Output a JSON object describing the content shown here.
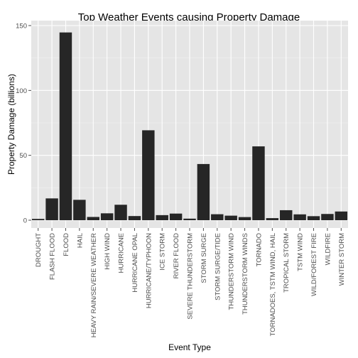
{
  "colors": {
    "panel": "#e5e5e5",
    "grid_major": "#ffffff",
    "grid_minor": "#f2f2f2",
    "bar": "#262626",
    "tick": "#4d4d4d"
  },
  "chart_data": {
    "type": "bar",
    "title": "Top Weather Events causing Property Damage",
    "xlabel": "Event Type",
    "ylabel": "Property Damage (billions)",
    "ylim": [
      0,
      150
    ],
    "yticks": [
      0,
      50,
      100,
      150
    ],
    "grid": true,
    "categories": [
      "DROUGHT",
      "FLASH FLOOD",
      "FLOOD",
      "HAIL",
      "HEAVY RAIN/SEVERE WEATHER",
      "HIGH WIND",
      "HURRICANE",
      "HURRICANE OPAL",
      "HURRICANE/TYPHOON",
      "ICE STORM",
      "RIVER FLOOD",
      "SEVERE THUNDERSTORM",
      "STORM SURGE",
      "STORM SURGE/TIDE",
      "THUNDERSTORM WIND",
      "THUNDERSTORM WINDS",
      "TORNADO",
      "TORNADOES, TSTM WIND, HAIL",
      "TROPICAL STORM",
      "TSTM WIND",
      "WILD/FOREST FIRE",
      "WILDFIRE",
      "WINTER STORM"
    ],
    "values": [
      1.0,
      16.8,
      144.7,
      15.7,
      2.5,
      5.3,
      11.9,
      3.2,
      69.3,
      3.9,
      5.1,
      1.2,
      43.3,
      4.6,
      3.5,
      2.4,
      56.9,
      1.6,
      7.7,
      4.5,
      3.1,
      4.8,
      6.7
    ]
  }
}
